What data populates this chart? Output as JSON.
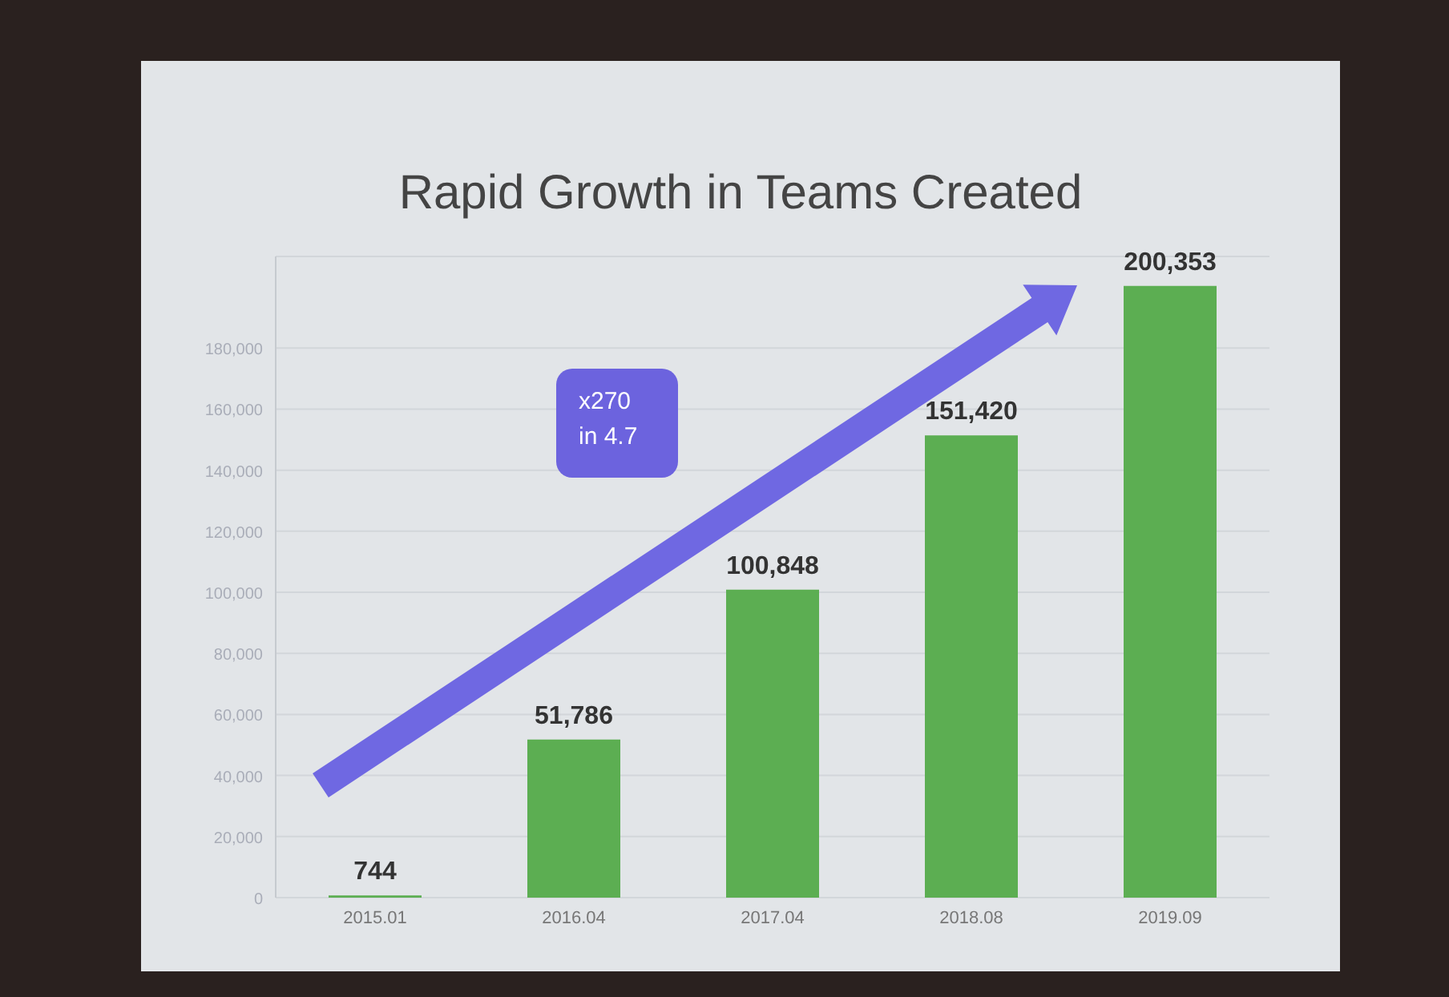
{
  "chart_data": {
    "type": "bar",
    "title": "Rapid Growth in Teams Created",
    "categories": [
      "2015.01",
      "2016.04",
      "2017.04",
      "2018.08",
      "2019.09"
    ],
    "values": [
      744,
      51786,
      100848,
      151420,
      200353
    ],
    "color": "#5cae52",
    "value_labels": [
      "744",
      "51,786",
      "100,848",
      "151,420",
      "200,353"
    ],
    "ylim": [
      0,
      210000
    ],
    "yticks": [
      0,
      {
        "value": 20000,
        "label": "20,000"
      },
      {
        "value": 40000,
        "label": "40,000"
      },
      {
        "value": 60000,
        "label": "60,000"
      },
      {
        "value": 80000,
        "label": "80,000"
      },
      {
        "value": 100000,
        "label": "100,000"
      },
      {
        "value": 120000,
        "label": "120,000"
      },
      {
        "value": 140000,
        "label": "140,000"
      },
      {
        "value": 160000,
        "label": "160,000"
      },
      {
        "value": 180000,
        "label": "180,000"
      }
    ],
    "grid": "y",
    "annotations": [
      "x270 in 4.7"
    ]
  }
}
